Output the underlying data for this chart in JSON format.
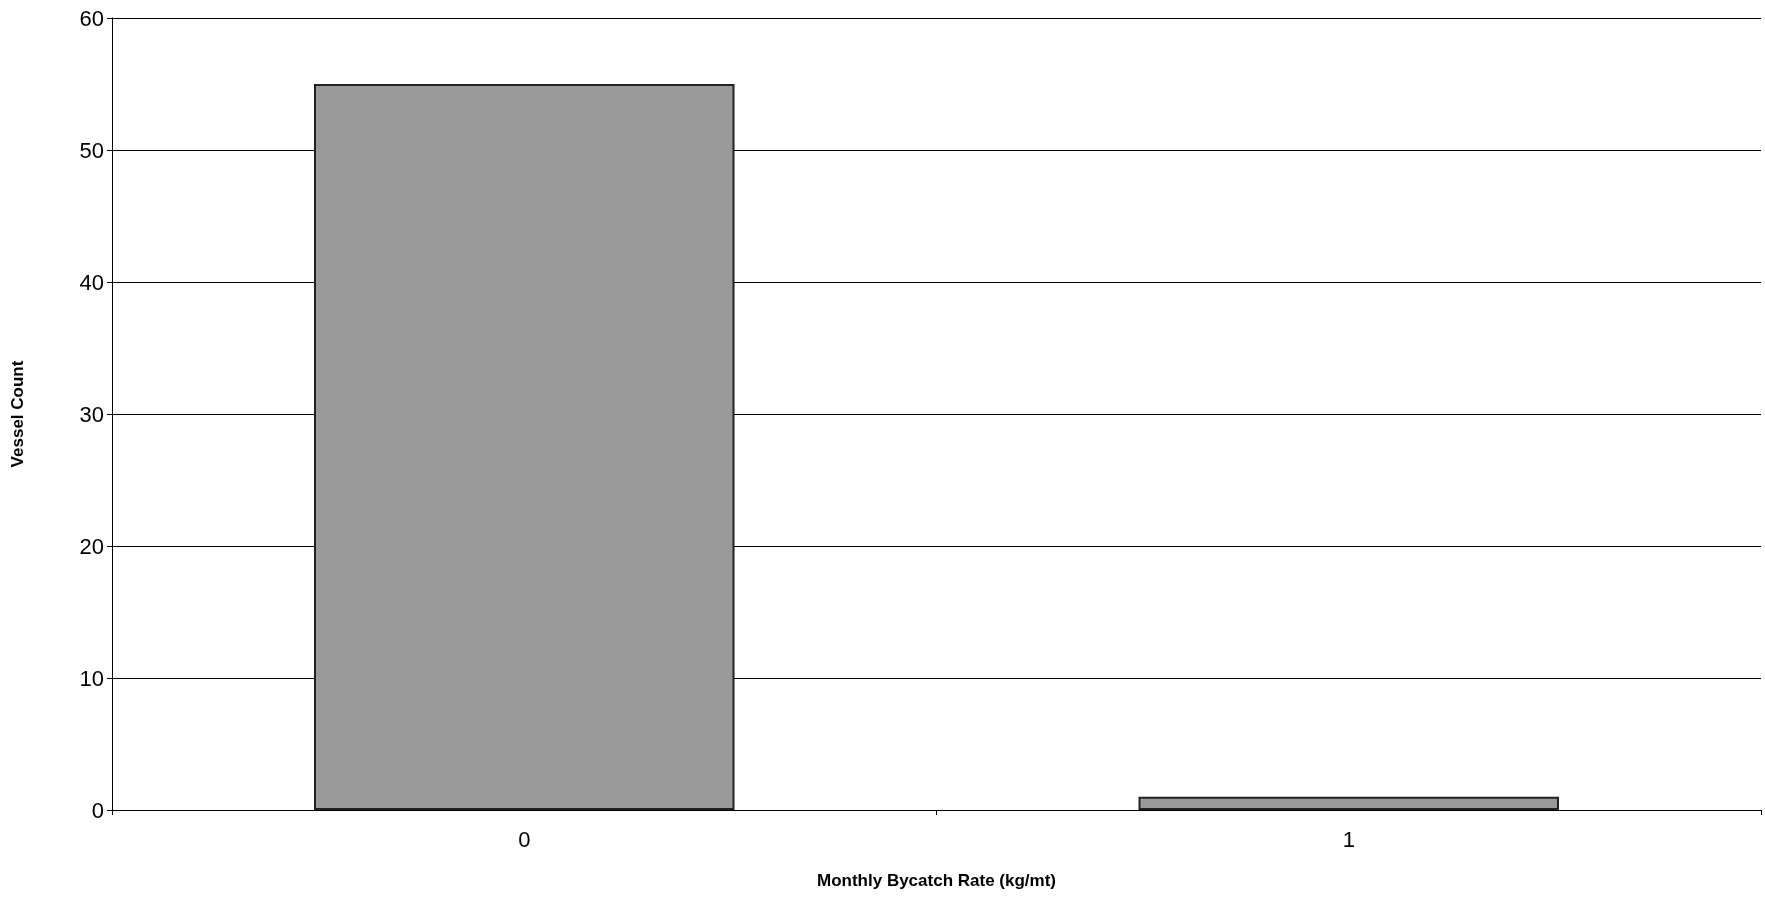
{
  "chart_data": {
    "type": "bar",
    "xlabel": "Monthly Bycatch Rate (kg/mt)",
    "ylabel": "Vessel Count",
    "categories": [
      "0",
      "1"
    ],
    "values": [
      55,
      1
    ],
    "color": "#9a9a9a",
    "ylim": [
      0,
      60
    ],
    "yticks": [
      0,
      10,
      20,
      30,
      40,
      50,
      60
    ],
    "grid": "y"
  }
}
